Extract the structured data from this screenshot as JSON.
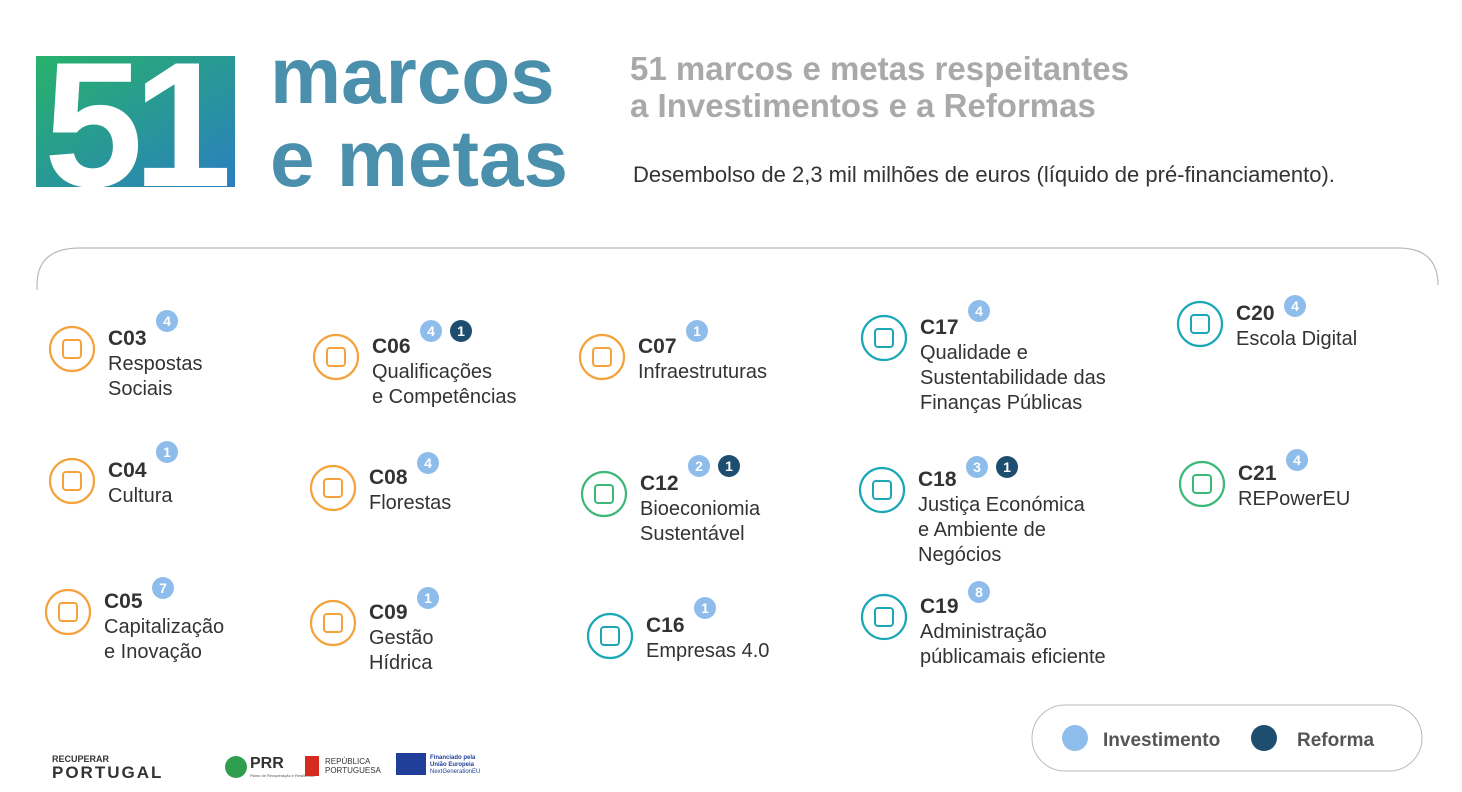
{
  "hero": {
    "number": "51",
    "title": [
      "marcos",
      "e metas"
    ],
    "subtitle": [
      "51 marcos e metas respeitantes",
      "a Investimentos e a Reformas"
    ],
    "description": "Desembolso de 2,3 mil milhões de euros (líquido de pré-financiamento)."
  },
  "components": [
    {
      "code": "C03",
      "name": [
        "Respostas",
        "Sociais"
      ],
      "investments": 4
    },
    {
      "code": "C04",
      "name": [
        "Cultura"
      ],
      "investments": 1
    },
    {
      "code": "C05",
      "name": [
        "Capitalização",
        "e Inovação"
      ],
      "investments": 7
    },
    {
      "code": "C06",
      "name": [
        "Qualificações",
        "e Competências"
      ],
      "investments": 4,
      "reforms": 1
    },
    {
      "code": "C08",
      "name": [
        "Florestas"
      ],
      "investments": 4
    },
    {
      "code": "C09",
      "name": [
        "Gestão",
        "Hídrica"
      ],
      "investments": 1
    },
    {
      "code": "C07",
      "name": [
        "Infraestruturas"
      ],
      "investments": 1
    },
    {
      "code": "C12",
      "name": [
        "Bioeconiomia",
        "Sustentável"
      ],
      "investments": 2,
      "reforms": 1
    },
    {
      "code": "C16",
      "name": [
        "Empresas 4.0"
      ],
      "investments": 1
    },
    {
      "code": "C17",
      "name": [
        "Qualidade e",
        "Sustentabilidade das",
        "Finanças Públicas"
      ],
      "investments": 4
    },
    {
      "code": "C18",
      "name": [
        "Justiça Económica",
        "e Ambiente de",
        "Negócios"
      ],
      "investments": 3,
      "reforms": 1
    },
    {
      "code": "C19",
      "name": [
        "Administração",
        "públicamais eficiente"
      ],
      "investments": 8
    },
    {
      "code": "C20",
      "name": [
        "Escola Digital"
      ],
      "investments": 4
    },
    {
      "code": "C21",
      "name": [
        "REPowerEU"
      ],
      "investments": 4
    }
  ],
  "legend": {
    "investment": "Investimento",
    "reform": "Reforma"
  },
  "footer": {
    "brand": [
      "RECUPERAR",
      "PORTUGAL"
    ],
    "prr": "PRR",
    "prr_name": "Plano de Recuperação e Resiliência",
    "republic": [
      "REPÚBLICA",
      "PORTUGUESA"
    ],
    "eu": [
      "Financiado pela",
      "União Europeia",
      "NextGenerationEU"
    ]
  }
}
